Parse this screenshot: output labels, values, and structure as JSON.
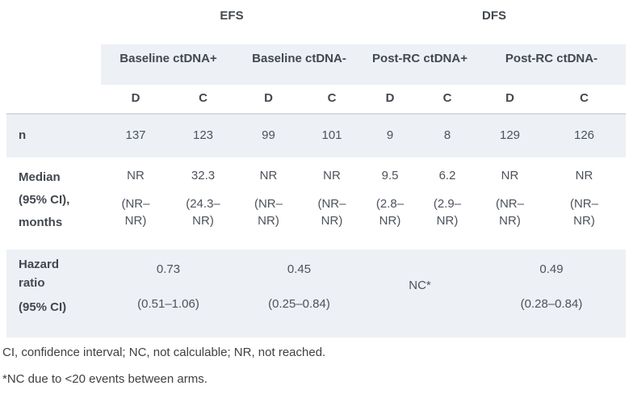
{
  "colors": {
    "band": "#edf0f5",
    "border": "#d8dade",
    "heading_text": "#43484f",
    "body_text": "#4d525b",
    "footnote_text": "#3e4043"
  },
  "table": {
    "outcomes": [
      "EFS",
      "DFS"
    ],
    "subgroups": [
      "Baseline ctDNA+",
      "Baseline ctDNA-",
      "Post-RC ctDNA+",
      "Post-RC ctDNA-"
    ],
    "arms": [
      "D",
      "C",
      "D",
      "C",
      "D",
      "C",
      "D",
      "C"
    ],
    "n_row": {
      "label": "n",
      "values": [
        "137",
        "123",
        "99",
        "101",
        "9",
        "8",
        "129",
        "126"
      ]
    },
    "median_row": {
      "label": "Median\n(95% CI),\nmonths",
      "cells": [
        {
          "value": "NR",
          "ci": "(NR–\nNR)"
        },
        {
          "value": "32.3",
          "ci": "(24.3–\nNR)"
        },
        {
          "value": "NR",
          "ci": "(NR–\nNR)"
        },
        {
          "value": "NR",
          "ci": "(NR–\nNR)"
        },
        {
          "value": "9.5",
          "ci": "(2.8–\nNR)"
        },
        {
          "value": "6.2",
          "ci": "(2.9–\nNR)"
        },
        {
          "value": "NR",
          "ci": "(NR–\nNR)"
        },
        {
          "value": "NR",
          "ci": "(NR–\nNR)"
        }
      ]
    },
    "hazard_row": {
      "label_main": "Hazard\nratio",
      "label_sub": "(95% CI)",
      "cells": [
        {
          "value": "0.73",
          "ci": "(0.51–1.06)"
        },
        {
          "value": "0.45",
          "ci": "(0.25–0.84)"
        },
        {
          "value": "NC*",
          "ci": ""
        },
        {
          "value": "0.49",
          "ci": "(0.28–0.84)"
        }
      ]
    }
  },
  "footnotes": [
    "CI, confidence interval; NC, not calculable; NR, not reached.",
    "*NC due to <20 events between arms."
  ]
}
